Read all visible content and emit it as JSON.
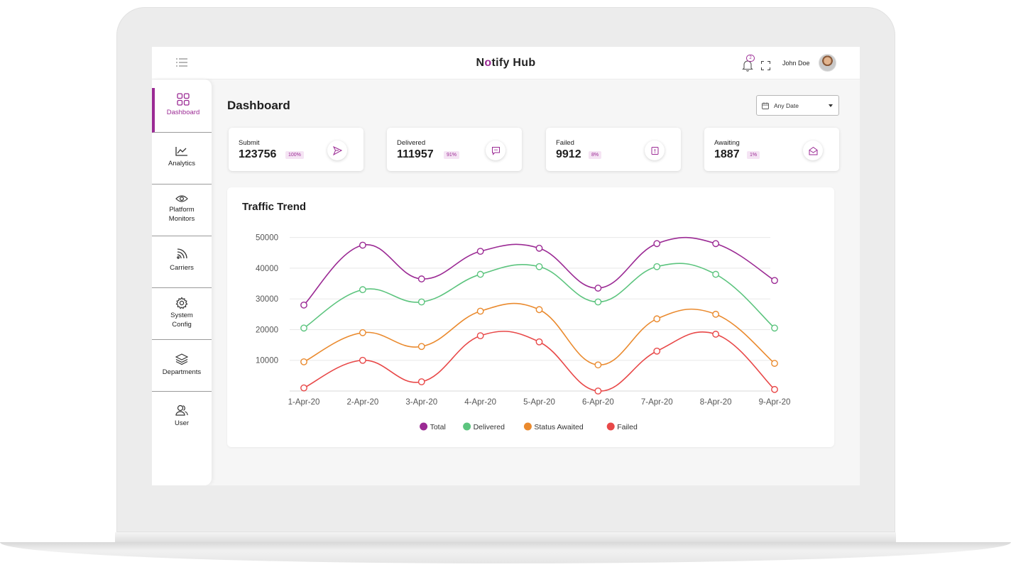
{
  "app": {
    "brand_prefix": "N",
    "brand_mark": "o",
    "brand_suffix": "tify Hub",
    "accent": "#9b2a94"
  },
  "header": {
    "notifications_count": "2",
    "user_name": "John Doe"
  },
  "sidebar": {
    "items": [
      {
        "label": "Dashboard",
        "icon": "grid-icon"
      },
      {
        "label": "Analytics",
        "icon": "line-chart-icon"
      },
      {
        "label": "Platform Monitors",
        "icon": "eye-icon"
      },
      {
        "label": "Carriers",
        "icon": "signal-icon"
      },
      {
        "label": "System Config",
        "icon": "gear-icon"
      },
      {
        "label": "Departments",
        "icon": "layers-icon"
      },
      {
        "label": "User",
        "icon": "users-icon"
      }
    ]
  },
  "main": {
    "title": "Dashboard",
    "date_filter": "Any Date",
    "stats": [
      {
        "label": "Submit",
        "value": "123756",
        "percent": "100%",
        "icon": "send-icon"
      },
      {
        "label": "Delivered",
        "value": "111957",
        "percent": "91%",
        "icon": "message-icon"
      },
      {
        "label": "Failed",
        "value": "9912",
        "percent": "8%",
        "icon": "alert-icon"
      },
      {
        "label": "Awaiting",
        "value": "1887",
        "percent": "1%",
        "icon": "mail-open-icon"
      }
    ]
  },
  "chart_data": {
    "type": "line",
    "title": "Traffic Trend",
    "categories": [
      "1-Apr-20",
      "2-Apr-20",
      "3-Apr-20",
      "4-Apr-20",
      "5-Apr-20",
      "6-Apr-20",
      "7-Apr-20",
      "8-Apr-20",
      "9-Apr-20"
    ],
    "y_ticks": [
      10000,
      20000,
      30000,
      40000,
      50000
    ],
    "ylim": [
      0,
      52000
    ],
    "legend_position": "bottom",
    "series": [
      {
        "name": "Total",
        "color": "#9b2a94",
        "values": [
          28000,
          47500,
          36500,
          45500,
          46500,
          33500,
          48000,
          48000,
          36000
        ]
      },
      {
        "name": "Delivered",
        "color": "#5cc47e",
        "values": [
          20500,
          33000,
          29000,
          38000,
          40500,
          29000,
          40500,
          38000,
          20500
        ]
      },
      {
        "name": "Status Awaited",
        "color": "#ea8a2e",
        "values": [
          9500,
          19000,
          14500,
          26000,
          26500,
          8500,
          23500,
          25000,
          9000
        ]
      },
      {
        "name": "Failed",
        "color": "#e84848",
        "values": [
          1000,
          10000,
          3000,
          18000,
          16000,
          0,
          13000,
          18500,
          500
        ]
      }
    ]
  }
}
